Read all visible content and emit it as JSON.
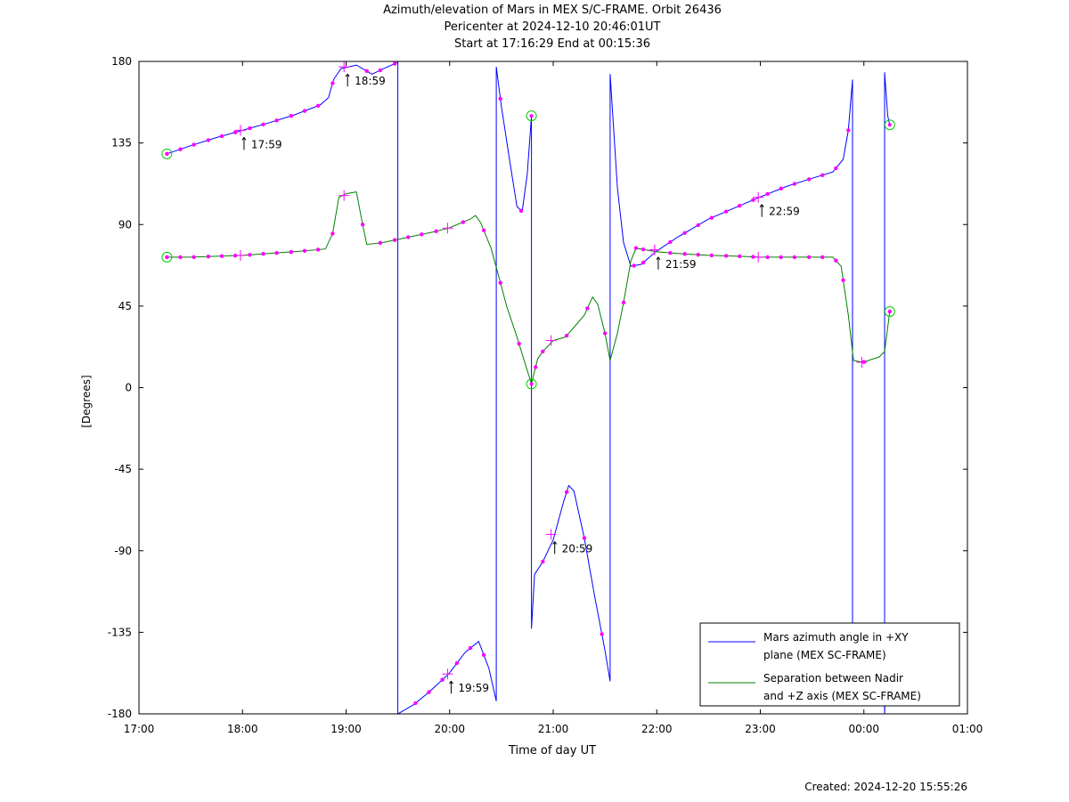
{
  "title": {
    "line1": "Azimuth/elevation of Mars in MEX S/C-FRAME.  Orbit 26436",
    "line2": "Pericenter at 2024-12-10 20:46:01UT",
    "line3": "Start at 17:16:29 End at 00:15:36"
  },
  "footer": {
    "created": "Created: 2024-12-20 15:55:26"
  },
  "chart_data": {
    "type": "line",
    "xlabel": "Time of day UT",
    "ylabel": "[Degrees]",
    "xlim": [
      17.0,
      25.0
    ],
    "ylim": [
      -180,
      180
    ],
    "x_ticks": [
      17,
      18,
      19,
      20,
      21,
      22,
      23,
      24,
      25
    ],
    "x_tick_labels": [
      "17:00",
      "18:00",
      "19:00",
      "20:00",
      "21:00",
      "22:00",
      "23:00",
      "00:00",
      "01:00"
    ],
    "y_ticks": [
      180,
      135,
      90,
      45,
      0,
      -45,
      -90,
      -135,
      -180
    ],
    "y_tick_labels": [
      "180",
      "135",
      "90",
      "45",
      "0",
      "-45",
      "-90",
      "-135",
      "-180"
    ],
    "legend_position": "bottom-right",
    "colors": {
      "azimuth": "#0000ff",
      "separation": "#008000",
      "markers": "#ff00ff",
      "endpoints": "#00cc00"
    },
    "series": [
      {
        "name": "Mars azimuth angle in +XY plane (MEX SC-FRAME)",
        "legend_lines": [
          "Mars azimuth angle in +XY",
          "plane (MEX SC-FRAME)"
        ],
        "color": "#0000ff",
        "segments": [
          [
            [
              17.27,
              129
            ],
            [
              17.5,
              133.5
            ],
            [
              17.75,
              138
            ],
            [
              18.0,
              142
            ],
            [
              18.25,
              146
            ],
            [
              18.5,
              150.5
            ],
            [
              18.75,
              156
            ],
            [
              18.83,
              160
            ],
            [
              18.88,
              170
            ],
            [
              18.95,
              176
            ],
            [
              19.1,
              178
            ],
            [
              19.25,
              173
            ],
            [
              19.4,
              177
            ],
            [
              19.5,
              179.5
            ]
          ],
          [
            [
              19.5,
              -180
            ],
            [
              19.65,
              -175
            ],
            [
              19.8,
              -168
            ],
            [
              19.99,
              -158
            ],
            [
              20.15,
              -146
            ],
            [
              20.28,
              -140
            ],
            [
              20.38,
              -155
            ],
            [
              20.45,
              -173
            ]
          ],
          [
            [
              20.45,
              177
            ],
            [
              20.5,
              155
            ],
            [
              20.58,
              125
            ],
            [
              20.65,
              100
            ],
            [
              20.7,
              97
            ],
            [
              20.75,
              118
            ],
            [
              20.79,
              150
            ]
          ],
          [
            [
              20.79,
              -133
            ],
            [
              20.82,
              -103
            ],
            [
              20.9,
              -96
            ],
            [
              21.0,
              -84
            ],
            [
              21.1,
              -63
            ],
            [
              21.15,
              -54
            ],
            [
              21.2,
              -57
            ],
            [
              21.3,
              -83
            ],
            [
              21.4,
              -115
            ],
            [
              21.5,
              -145
            ],
            [
              21.55,
              -162
            ]
          ],
          [
            [
              21.55,
              173
            ],
            [
              21.62,
              110
            ],
            [
              21.68,
              80
            ],
            [
              21.75,
              67
            ],
            [
              21.85,
              68
            ],
            [
              21.99,
              75
            ],
            [
              22.2,
              83
            ],
            [
              22.5,
              93
            ],
            [
              22.99,
              105
            ],
            [
              23.25,
              111
            ],
            [
              23.5,
              115.5
            ],
            [
              23.7,
              119
            ],
            [
              23.8,
              126
            ],
            [
              23.85,
              142
            ],
            [
              23.89,
              170
            ]
          ],
          [
            [
              23.89,
              -130
            ]
          ],
          [
            [
              24.23,
              -130
            ],
            [
              24.2,
              -180
            ]
          ],
          [
            [
              24.2,
              174
            ],
            [
              24.23,
              150
            ],
            [
              24.25,
              145
            ]
          ]
        ]
      },
      {
        "name": "Separation between Nadir and +Z axis (MEX SC-FRAME)",
        "legend_lines": [
          "Separation between Nadir",
          "and +Z axis (MEX SC-FRAME)"
        ],
        "color": "#008000",
        "segments": [
          [
            [
              17.27,
              72
            ],
            [
              17.5,
              72
            ],
            [
              17.75,
              72.5
            ],
            [
              18.0,
              73
            ],
            [
              18.25,
              74
            ],
            [
              18.5,
              75
            ],
            [
              18.8,
              76.5
            ],
            [
              18.87,
              85
            ],
            [
              18.93,
              105
            ],
            [
              19.0,
              107
            ],
            [
              19.1,
              108
            ],
            [
              19.16,
              90
            ],
            [
              19.2,
              79
            ],
            [
              19.35,
              80
            ],
            [
              19.6,
              83
            ],
            [
              19.85,
              86
            ],
            [
              19.99,
              88
            ],
            [
              20.2,
              93
            ],
            [
              20.25,
              95
            ],
            [
              20.3,
              91
            ],
            [
              20.4,
              77
            ],
            [
              20.48,
              60
            ],
            [
              20.55,
              45
            ],
            [
              20.65,
              28
            ],
            [
              20.72,
              15
            ],
            [
              20.79,
              2
            ],
            [
              20.85,
              16
            ],
            [
              20.9,
              20
            ],
            [
              21.0,
              26
            ],
            [
              21.12,
              28
            ],
            [
              21.3,
              40
            ],
            [
              21.38,
              50
            ],
            [
              21.43,
              46
            ],
            [
              21.5,
              30
            ],
            [
              21.55,
              15
            ],
            [
              21.62,
              30
            ],
            [
              21.68,
              47
            ],
            [
              21.75,
              70
            ],
            [
              21.8,
              77
            ],
            [
              21.99,
              75
            ],
            [
              22.2,
              74
            ],
            [
              22.5,
              73
            ],
            [
              22.8,
              72.5
            ],
            [
              23.0,
              72
            ],
            [
              23.25,
              72
            ],
            [
              23.5,
              72
            ],
            [
              23.7,
              72
            ],
            [
              23.78,
              67
            ],
            [
              23.85,
              40
            ],
            [
              23.9,
              15
            ],
            [
              23.99,
              14
            ],
            [
              24.15,
              17
            ],
            [
              24.2,
              20
            ],
            [
              24.25,
              42
            ]
          ]
        ]
      }
    ],
    "marker_points": [
      {
        "series": 0,
        "x": [
          17.27,
          17.4,
          17.53,
          17.67,
          17.8,
          17.93,
          18.07,
          18.2,
          18.33,
          18.47,
          18.6,
          18.73,
          18.87,
          19.2,
          19.33,
          19.47,
          19.67,
          19.8,
          19.93,
          20.07,
          20.2,
          20.33,
          20.49,
          20.69,
          20.9,
          21.13,
          21.3,
          21.47,
          21.78,
          21.87,
          22.13,
          22.27,
          22.4,
          22.53,
          22.67,
          22.8,
          22.93,
          23.07,
          23.2,
          23.33,
          23.47,
          23.6,
          23.73,
          23.85,
          24.26
        ]
      },
      {
        "series": 1,
        "x": [
          17.27,
          17.4,
          17.53,
          17.67,
          17.8,
          17.93,
          18.07,
          18.2,
          18.33,
          18.47,
          18.6,
          18.73,
          18.87,
          19.16,
          19.33,
          19.47,
          19.6,
          19.73,
          19.87,
          20.13,
          20.33,
          20.49,
          20.67,
          20.83,
          20.9,
          21.13,
          21.33,
          21.5,
          21.68,
          21.8,
          21.87,
          22.13,
          22.27,
          22.4,
          22.53,
          22.67,
          22.8,
          22.93,
          23.07,
          23.2,
          23.33,
          23.47,
          23.6,
          23.73,
          23.8,
          24.0,
          24.25
        ]
      }
    ],
    "hour_annotations": [
      {
        "series": 0,
        "x": 17.98,
        "y": 142,
        "label": "17:59"
      },
      {
        "series": 0,
        "x": 18.98,
        "y": 177,
        "label": "18:59"
      },
      {
        "series": 0,
        "x": 19.98,
        "y": -158,
        "label": "19:59"
      },
      {
        "series": 0,
        "x": 20.98,
        "y": -81,
        "label": "20:59"
      },
      {
        "series": 0,
        "x": 21.98,
        "y": 76,
        "label": "21:59"
      },
      {
        "series": 0,
        "x": 22.98,
        "y": 105,
        "label": "22:59"
      }
    ],
    "hour_crosses_other": [
      {
        "series": 1,
        "x": 17.98,
        "y": 73
      },
      {
        "series": 1,
        "x": 18.98,
        "y": 106
      },
      {
        "series": 1,
        "x": 19.98,
        "y": 88
      },
      {
        "series": 1,
        "x": 20.98,
        "y": 26
      },
      {
        "series": 1,
        "x": 21.98,
        "y": 76
      },
      {
        "series": 1,
        "x": 22.98,
        "y": 72
      },
      {
        "series": 1,
        "x": 23.98,
        "y": 14
      }
    ],
    "endpoint_circles": [
      {
        "x": 17.27,
        "y": 129
      },
      {
        "x": 17.27,
        "y": 72
      },
      {
        "x": 20.79,
        "y": 150
      },
      {
        "x": 20.79,
        "y": 2
      },
      {
        "x": 24.25,
        "y": 145
      },
      {
        "x": 24.25,
        "y": 42
      }
    ]
  }
}
